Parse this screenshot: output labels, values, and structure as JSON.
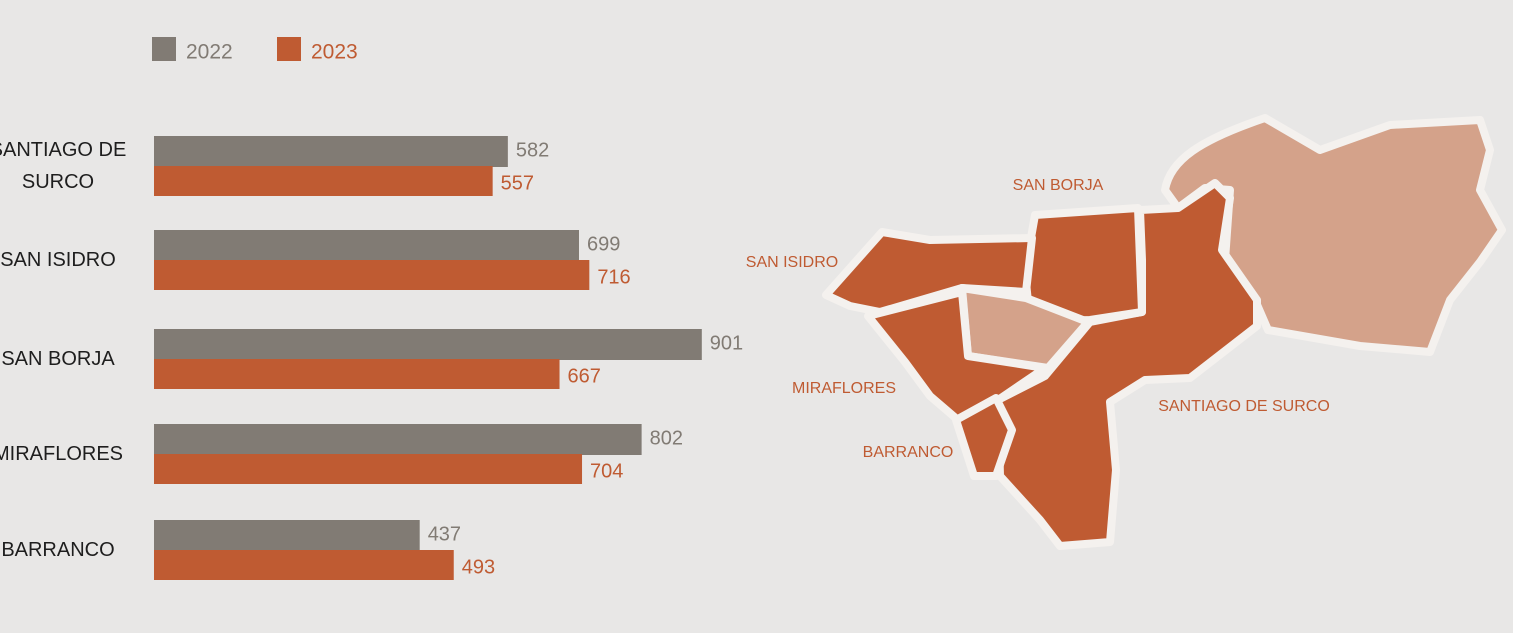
{
  "chart_data": {
    "type": "bar",
    "orientation": "horizontal",
    "categories": [
      "SANTIAGO DE SURCO",
      "SAN ISIDRO",
      "SAN BORJA",
      "MIRAFLORES",
      "BARRANCO"
    ],
    "series": [
      {
        "name": "2022",
        "color": "#817b74",
        "values": [
          582,
          699,
          901,
          802,
          437
        ]
      },
      {
        "name": "2023",
        "color": "#bf5b32",
        "values": [
          557,
          716,
          667,
          704,
          493
        ]
      }
    ]
  },
  "map": {
    "labels": [
      "SAN BORJA",
      "SAN ISIDRO",
      "MIRAFLORES",
      "BARRANCO",
      "SANTIAGO DE SURCO"
    ]
  }
}
